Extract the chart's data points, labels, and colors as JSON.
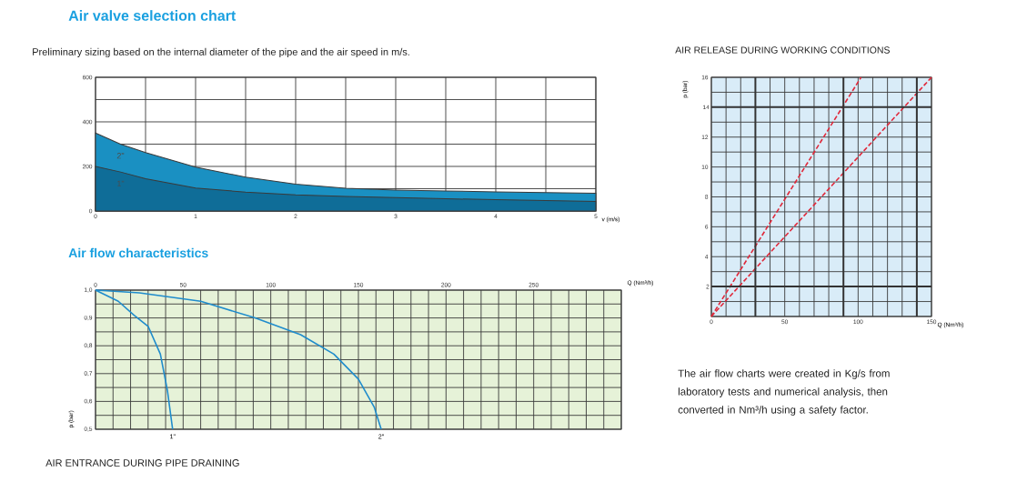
{
  "chart_data": [
    {
      "type": "area",
      "title": "Air valve selection chart",
      "subtitle": "Preliminary sizing based on the internal diameter of the pipe and the air speed in m/s.",
      "xlabel": "v (m/s)",
      "xlim": [
        0,
        5
      ],
      "ylim": [
        0,
        600
      ],
      "grid": true,
      "marker": "none",
      "xticks": [
        0,
        {
          "value": 0.5,
          "label": null
        },
        1,
        {
          "value": 1.5,
          "label": null
        },
        2,
        {
          "value": 2.5,
          "label": null
        },
        3,
        {
          "value": 3.5,
          "label": null
        },
        4,
        {
          "value": 4.5,
          "label": null
        },
        5
      ],
      "yticks": [
        0,
        {
          "value": 100,
          "label": null
        },
        200,
        {
          "value": 300,
          "label": null
        },
        400,
        {
          "value": 500,
          "label": null
        },
        600
      ],
      "x": [
        0,
        0.25,
        0.5,
        1,
        1.5,
        2,
        2.5,
        3,
        3.5,
        4,
        4.5,
        5
      ],
      "series": [
        {
          "name": "2\"",
          "color": "#1a90c2",
          "values": [
            350,
            300,
            262,
            197,
            152,
            120,
            102,
            94,
            90,
            86,
            83,
            80
          ]
        },
        {
          "name": "1\"",
          "color": "#0f6d98",
          "values": [
            200,
            175,
            145,
            103,
            85,
            72,
            65,
            60,
            55,
            51,
            47,
            43
          ]
        }
      ]
    },
    {
      "type": "line",
      "title": "Air flow characteristics",
      "xlabel": "Q (Nm³/h)",
      "ylabel": "p (bar)",
      "annotations": [
        "AIR ENTRANCE DURING PIPE DRAINING"
      ],
      "xlim": [
        0,
        300
      ],
      "ylim": [
        0.5,
        1.0
      ],
      "grid": true,
      "marker": "none",
      "line_style": "solid",
      "xticks": [
        0,
        {
          "value": 10,
          "label": null
        },
        {
          "value": 20,
          "label": null
        },
        {
          "value": 30,
          "label": null
        },
        {
          "value": 40,
          "label": null
        },
        50,
        {
          "value": 60,
          "label": null
        },
        {
          "value": 70,
          "label": null
        },
        {
          "value": 80,
          "label": null
        },
        {
          "value": 90,
          "label": null
        },
        100,
        {
          "value": 110,
          "label": null
        },
        {
          "value": 120,
          "label": null
        },
        {
          "value": 130,
          "label": null
        },
        {
          "value": 140,
          "label": null
        },
        150,
        {
          "value": 160,
          "label": null
        },
        {
          "value": 170,
          "label": null
        },
        {
          "value": 180,
          "label": null
        },
        {
          "value": 190,
          "label": null
        },
        200,
        {
          "value": 210,
          "label": null
        },
        {
          "value": 220,
          "label": null
        },
        {
          "value": 230,
          "label": null
        },
        {
          "value": 240,
          "label": null
        },
        250,
        {
          "value": 260,
          "label": null
        },
        {
          "value": 270,
          "label": null
        },
        {
          "value": 280,
          "label": null
        },
        {
          "value": 290,
          "label": null
        },
        {
          "value": 300,
          "label": null
        }
      ],
      "yticks": [
        {
          "value": 0.5,
          "label": "0,5"
        },
        {
          "value": 0.55,
          "label": null
        },
        {
          "value": 0.6,
          "label": "0,6"
        },
        {
          "value": 0.65,
          "label": null
        },
        {
          "value": 0.7,
          "label": "0,7"
        },
        {
          "value": 0.75,
          "label": null
        },
        {
          "value": 0.8,
          "label": "0,8"
        },
        {
          "value": 0.85,
          "label": null
        },
        {
          "value": 0.9,
          "label": "0,9"
        },
        {
          "value": 0.95,
          "label": null
        },
        {
          "value": 1.0,
          "label": "1,0"
        }
      ],
      "series": [
        {
          "name": "1\"",
          "color": "#1f8ccc",
          "x": [
            0,
            13,
            22,
            30,
            37,
            41,
            44
          ],
          "values": [
            1.0,
            0.96,
            0.91,
            0.87,
            0.77,
            0.64,
            0.5
          ]
        },
        {
          "name": "2\"",
          "color": "#1f8ccc",
          "x": [
            0,
            25,
            60,
            91,
            117,
            136,
            150,
            159,
            163
          ],
          "values": [
            1.0,
            0.99,
            0.96,
            0.9,
            0.84,
            0.77,
            0.68,
            0.58,
            0.5
          ]
        }
      ]
    },
    {
      "type": "line",
      "title": "AIR RELEASE DURING WORKING CONDITIONS",
      "xlabel": "Q (Nm³/h)",
      "ylabel": "p (bar)",
      "xlim": [
        0,
        150
      ],
      "ylim": [
        0,
        16
      ],
      "grid": true,
      "marker": "none",
      "line_style": "dashed",
      "xticks": [
        0,
        {
          "value": 10,
          "label": null
        },
        {
          "value": 20,
          "label": null
        },
        {
          "value": 40,
          "label": null
        },
        50,
        {
          "value": 60,
          "label": null
        },
        {
          "value": 70,
          "label": null
        },
        {
          "value": 80,
          "label": null
        },
        100,
        {
          "value": 110,
          "label": null
        },
        {
          "value": 120,
          "label": null
        },
        {
          "value": 130,
          "label": null
        },
        150
      ],
      "yticks": [
        {
          "value": 0,
          "label": null
        },
        {
          "value": 1,
          "label": null
        },
        {
          "value": 3,
          "label": null
        },
        4,
        {
          "value": 5,
          "label": null
        },
        6,
        {
          "value": 7,
          "label": null
        },
        8,
        {
          "value": 9,
          "label": null
        },
        10,
        {
          "value": 11,
          "label": null
        },
        12,
        {
          "value": 13,
          "label": null
        },
        {
          "value": 15,
          "label": null
        },
        16
      ],
      "ref_lines": [
        {
          "axis": "x",
          "value": 30,
          "color": "#333333"
        },
        {
          "axis": "x",
          "value": 90,
          "color": "#333333"
        },
        {
          "axis": "x",
          "value": 140,
          "color": "#333333"
        },
        {
          "axis": "y",
          "value": 2,
          "label": "2",
          "color": "#333333"
        },
        {
          "axis": "y",
          "value": 14,
          "label": "14",
          "color": "#333333"
        }
      ],
      "series": [
        {
          "color": "#e0283a",
          "x": [
            0,
            102
          ],
          "values": [
            0,
            16
          ]
        },
        {
          "color": "#e0283a",
          "x": [
            0,
            150
          ],
          "values": [
            0,
            16
          ]
        }
      ]
    },
    {
      "type": "other",
      "annotations": [
        "The air flow charts were created in Kg/s from laboratory tests and numerical analysis, then converted in Nm³/h using a safety factor."
      ]
    }
  ]
}
